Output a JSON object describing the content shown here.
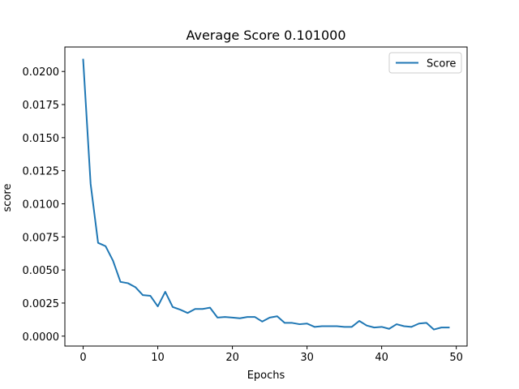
{
  "chart_data": {
    "type": "line",
    "title": "Average Score 0.101000",
    "xlabel": "Epochs",
    "ylabel": "score",
    "xlim": [
      -2.45,
      51.45
    ],
    "ylim": [
      -0.00075,
      0.02185
    ],
    "xticks": [
      0,
      10,
      20,
      30,
      40,
      50
    ],
    "xtick_labels": [
      "0",
      "10",
      "20",
      "30",
      "40",
      "50"
    ],
    "yticks": [
      0.0,
      0.0025,
      0.005,
      0.0075,
      0.01,
      0.0125,
      0.015,
      0.0175,
      0.02
    ],
    "ytick_labels": [
      "0.0000",
      "0.0025",
      "0.0050",
      "0.0075",
      "0.0100",
      "0.0125",
      "0.0150",
      "0.0175",
      "0.0200"
    ],
    "grid": false,
    "legend_position": "upper right",
    "series": [
      {
        "name": "Score",
        "color": "#1f77b4",
        "x": [
          0,
          1,
          2,
          3,
          4,
          5,
          6,
          7,
          8,
          9,
          10,
          11,
          12,
          13,
          14,
          15,
          16,
          17,
          18,
          19,
          20,
          21,
          22,
          23,
          24,
          25,
          26,
          27,
          28,
          29,
          30,
          31,
          32,
          33,
          34,
          35,
          36,
          37,
          38,
          39,
          40,
          41,
          42,
          43,
          44,
          45,
          46,
          47,
          48,
          49
        ],
        "values": [
          0.0209,
          0.0115,
          0.00705,
          0.0068,
          0.0057,
          0.0041,
          0.004,
          0.0037,
          0.0031,
          0.00305,
          0.00225,
          0.00335,
          0.0022,
          0.002,
          0.00175,
          0.00205,
          0.00205,
          0.00215,
          0.0014,
          0.00145,
          0.0014,
          0.00135,
          0.00145,
          0.00145,
          0.0011,
          0.0014,
          0.0015,
          0.001,
          0.001,
          0.0009,
          0.00095,
          0.0007,
          0.00075,
          0.00075,
          0.00075,
          0.0007,
          0.0007,
          0.00115,
          0.0008,
          0.00065,
          0.0007,
          0.00055,
          0.0009,
          0.00075,
          0.0007,
          0.00095,
          0.001,
          0.0005,
          0.00065,
          0.00065
        ]
      }
    ]
  }
}
